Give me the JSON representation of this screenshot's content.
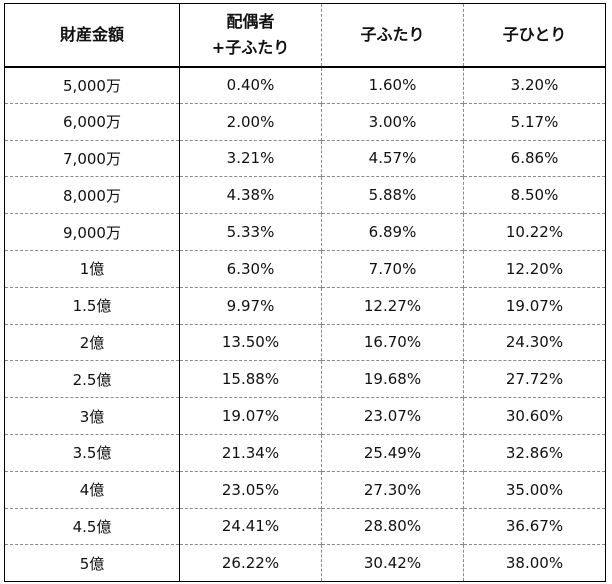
{
  "table": {
    "headers": {
      "col0": "財産金額",
      "col1_line1": "配偶者",
      "col1_line2": "+子ふたり",
      "col2": "子ふたり",
      "col3": "子ひとり"
    },
    "rows": [
      [
        "5,000万",
        "0.40%",
        "1.60%",
        "3.20%"
      ],
      [
        "6,000万",
        "2.00%",
        "3.00%",
        "5.17%"
      ],
      [
        "7,000万",
        "3.21%",
        "4.57%",
        "6.86%"
      ],
      [
        "8,000万",
        "4.38%",
        "5.88%",
        "8.50%"
      ],
      [
        "9,000万",
        "5.33%",
        "6.89%",
        "10.22%"
      ],
      [
        "1億",
        "6.30%",
        "7.70%",
        "12.20%"
      ],
      [
        "1.5億",
        "9.97%",
        "12.27%",
        "19.07%"
      ],
      [
        "2億",
        "13.50%",
        "16.70%",
        "24.30%"
      ],
      [
        "2.5億",
        "15.88%",
        "19.68%",
        "27.72%"
      ],
      [
        "3億",
        "19.07%",
        "23.07%",
        "30.60%"
      ],
      [
        "3.5億",
        "21.34%",
        "25.49%",
        "32.86%"
      ],
      [
        "4億",
        "23.05%",
        "27.30%",
        "35.00%"
      ],
      [
        "4.5億",
        "24.41%",
        "28.80%",
        "36.67%"
      ],
      [
        "5億",
        "26.22%",
        "30.42%",
        "38.00%"
      ]
    ]
  }
}
